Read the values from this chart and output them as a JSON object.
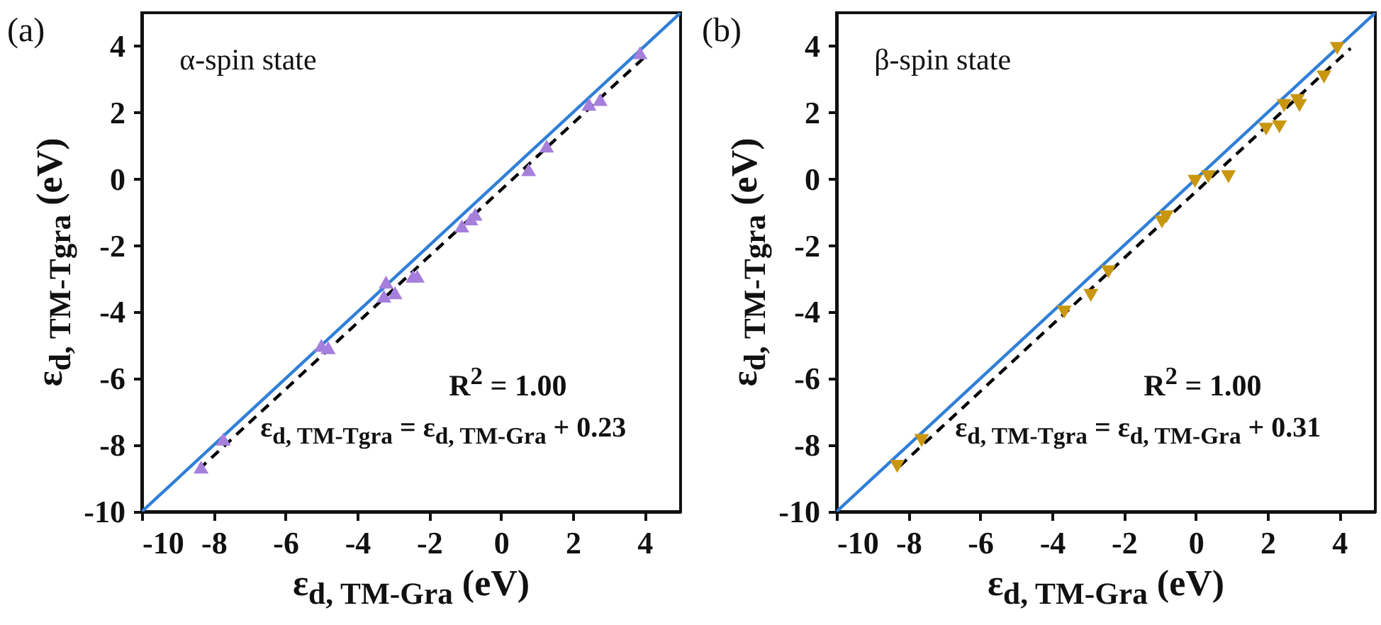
{
  "chart_data": [
    {
      "type": "scatter",
      "xlabel": "ε$_{d, TM-Gra}$ (eV)",
      "ylabel": "ε$_{d, TM-Tgra}$ (eV)",
      "annotations": [
        "(a)",
        "α-spin state",
        "R$^{2}$ = 1.00",
        "ε$_{d, TM-Tgra}$ = ε$_{d, TM-Gra}$ + 0.23"
      ],
      "xlim": [
        -10,
        5
      ],
      "ylim": [
        -10,
        5
      ],
      "xticks": [
        -10,
        -8,
        -6,
        -4,
        -2,
        0,
        2,
        4
      ],
      "yticks": [
        -10,
        -8,
        -6,
        -4,
        -2,
        0,
        2,
        4
      ],
      "grid": false,
      "series": [
        {
          "type": "scatter",
          "marker": "triangle",
          "color": "#a67fdc",
          "x": [
            -8.35,
            -7.73,
            -5.0,
            -4.81,
            -3.2,
            -3.26,
            -2.95,
            -2.45,
            -2.33,
            -1.09,
            -0.84,
            -0.72,
            0.77,
            1.27,
            2.45,
            2.76,
            3.87
          ],
          "values": [
            -8.66,
            -7.82,
            -5.0,
            -5.07,
            -3.1,
            -3.52,
            -3.42,
            -2.92,
            -2.92,
            -1.41,
            -1.2,
            -1.06,
            0.28,
            0.99,
            2.25,
            2.39,
            3.8
          ]
        },
        {
          "type": "line",
          "color": "#2f7fd8",
          "line_style": "solid",
          "x": [
            -10,
            5
          ],
          "values": [
            -10,
            5
          ]
        },
        {
          "type": "line",
          "color": "#000000",
          "line_style": "dashed",
          "x": [
            -8.41,
            4.06
          ],
          "values": [
            -8.73,
            3.73
          ]
        }
      ]
    },
    {
      "type": "scatter",
      "xlabel": "ε$_{d, TM-Gra}$ (eV)",
      "ylabel": "ε$_{d, TM-Tgra}$ (eV)",
      "annotations": [
        "(b)",
        "β-spin state",
        "R$^{2}$ = 1.00",
        "ε$_{d, TM-Tgra}$ = ε$_{d, TM-Gra}$ + 0.31"
      ],
      "xlim": [
        -10,
        5
      ],
      "ylim": [
        -10,
        5
      ],
      "xticks": [
        -10,
        -8,
        -6,
        -4,
        -2,
        0,
        2,
        4
      ],
      "yticks": [
        -10,
        -8,
        -6,
        -4,
        -2,
        0,
        2,
        4
      ],
      "grid": false,
      "series": [
        {
          "type": "scatter",
          "marker": "triangle-down",
          "color": "#c8960f",
          "x": [
            -8.31,
            -7.63,
            -3.66,
            -2.92,
            -2.43,
            -0.94,
            -0.82,
            -0.02,
            0.35,
            0.91,
            1.96,
            2.33,
            2.46,
            2.83,
            2.89,
            3.57,
            3.94
          ],
          "values": [
            -8.64,
            -7.86,
            -4.0,
            -3.5,
            -2.79,
            -1.29,
            -1.14,
            -0.07,
            0.07,
            0.07,
            1.5,
            1.57,
            2.21,
            2.36,
            2.21,
            3.07,
            3.93
          ]
        },
        {
          "type": "line",
          "color": "#2f7fd8",
          "line_style": "solid",
          "x": [
            -10,
            5
          ],
          "values": [
            -10,
            5
          ]
        },
        {
          "type": "line",
          "color": "#000000",
          "line_style": "dashed",
          "x": [
            -8.25,
            4.31
          ],
          "values": [
            -8.64,
            3.93
          ]
        }
      ]
    }
  ]
}
